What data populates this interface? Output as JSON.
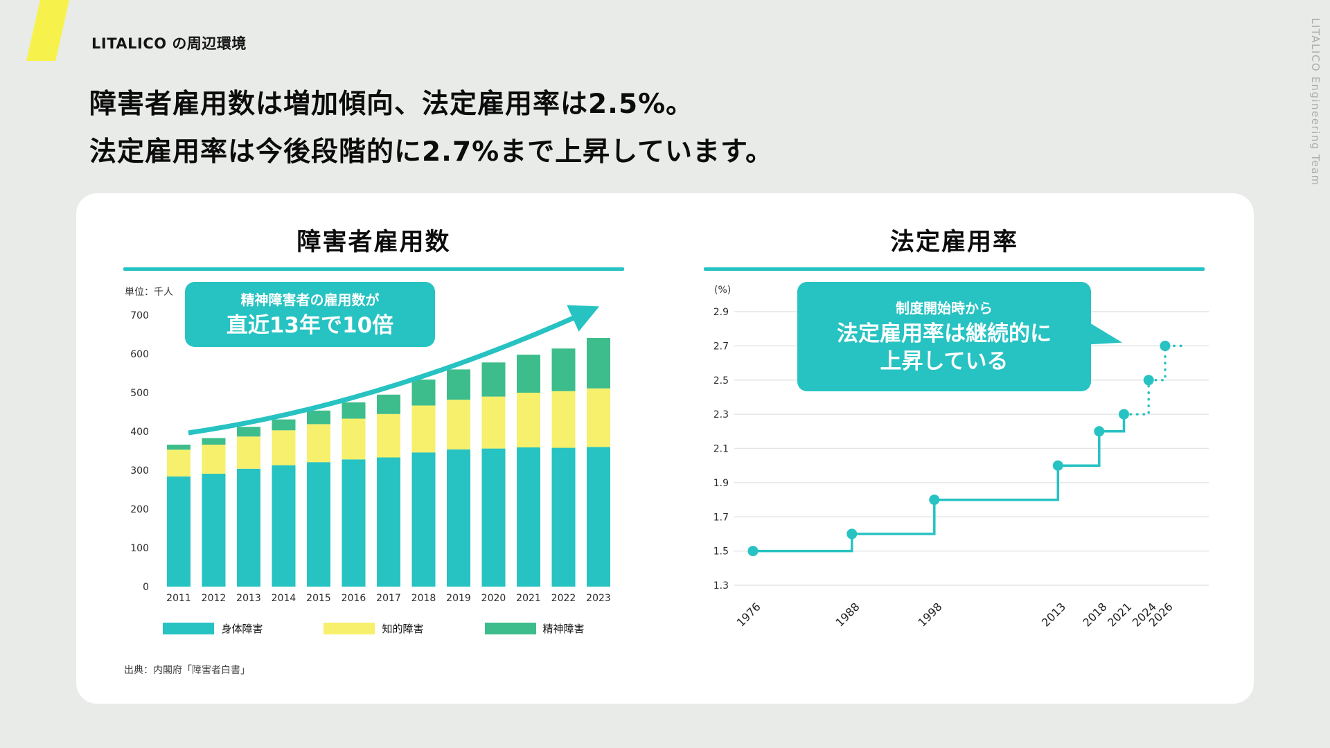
{
  "slide": {
    "kicker": "LITALICO の周辺環境",
    "side_label": "LITALICO Engineering Team",
    "headline_line1": "障害者雇用数は増加傾向、法定雇用率は2.5%。",
    "headline_line2": "法定雇用率は今後段階的に2.7%まで上昇しています。"
  },
  "colors": {
    "teal": "#27C2C2",
    "yellow": "#F6F06D",
    "green": "#3EBD8C",
    "logo_yellow": "#F7F24B",
    "background": "#E9EBE8",
    "card": "#FFFFFF"
  },
  "chart_data": [
    {
      "type": "bar",
      "stacked": true,
      "title": "障害者雇用数",
      "ylabel": "単位：千人",
      "categories": [
        "2011",
        "2012",
        "2013",
        "2014",
        "2015",
        "2016",
        "2017",
        "2018",
        "2019",
        "2020",
        "2021",
        "2022",
        "2023"
      ],
      "series": [
        {
          "name": "身体障害",
          "color": "#27C2C2",
          "values": [
            284,
            291,
            304,
            313,
            321,
            328,
            333,
            346,
            354,
            356,
            359,
            358,
            360
          ]
        },
        {
          "name": "知的障害",
          "color": "#F6F06D",
          "values": [
            69,
            75,
            83,
            90,
            98,
            105,
            112,
            121,
            128,
            134,
            141,
            146,
            151
          ]
        },
        {
          "name": "精神障害",
          "color": "#3EBD8C",
          "values": [
            13,
            17,
            25,
            28,
            35,
            42,
            50,
            67,
            78,
            88,
            98,
            110,
            130
          ]
        }
      ],
      "yticks": [
        0,
        100,
        200,
        300,
        400,
        500,
        600,
        700
      ],
      "ylim": [
        0,
        740
      ],
      "grid": false,
      "legend_position": "bottom",
      "annotation": {
        "line1": "精神障害者の雇用数が",
        "line2": "直近13年で10倍"
      },
      "source": "出典：内閣府「障害者白書」"
    },
    {
      "type": "line",
      "step": true,
      "title": "法定雇用率",
      "ylabel": "(%)",
      "x": [
        1976,
        1988,
        1998,
        2013,
        2018,
        2021,
        2024,
        2026
      ],
      "values": [
        1.5,
        1.6,
        1.8,
        2.0,
        2.2,
        2.3,
        2.5,
        2.7
      ],
      "future_from_year": 2024,
      "yticks": [
        1.3,
        1.5,
        1.7,
        1.9,
        2.1,
        2.3,
        2.5,
        2.7,
        2.9
      ],
      "ylim": [
        1.25,
        3.0
      ],
      "grid": true,
      "annotation": {
        "line1": "制度開始時から",
        "line2": "法定雇用率は継続的に",
        "line3": "上昇している"
      }
    }
  ]
}
